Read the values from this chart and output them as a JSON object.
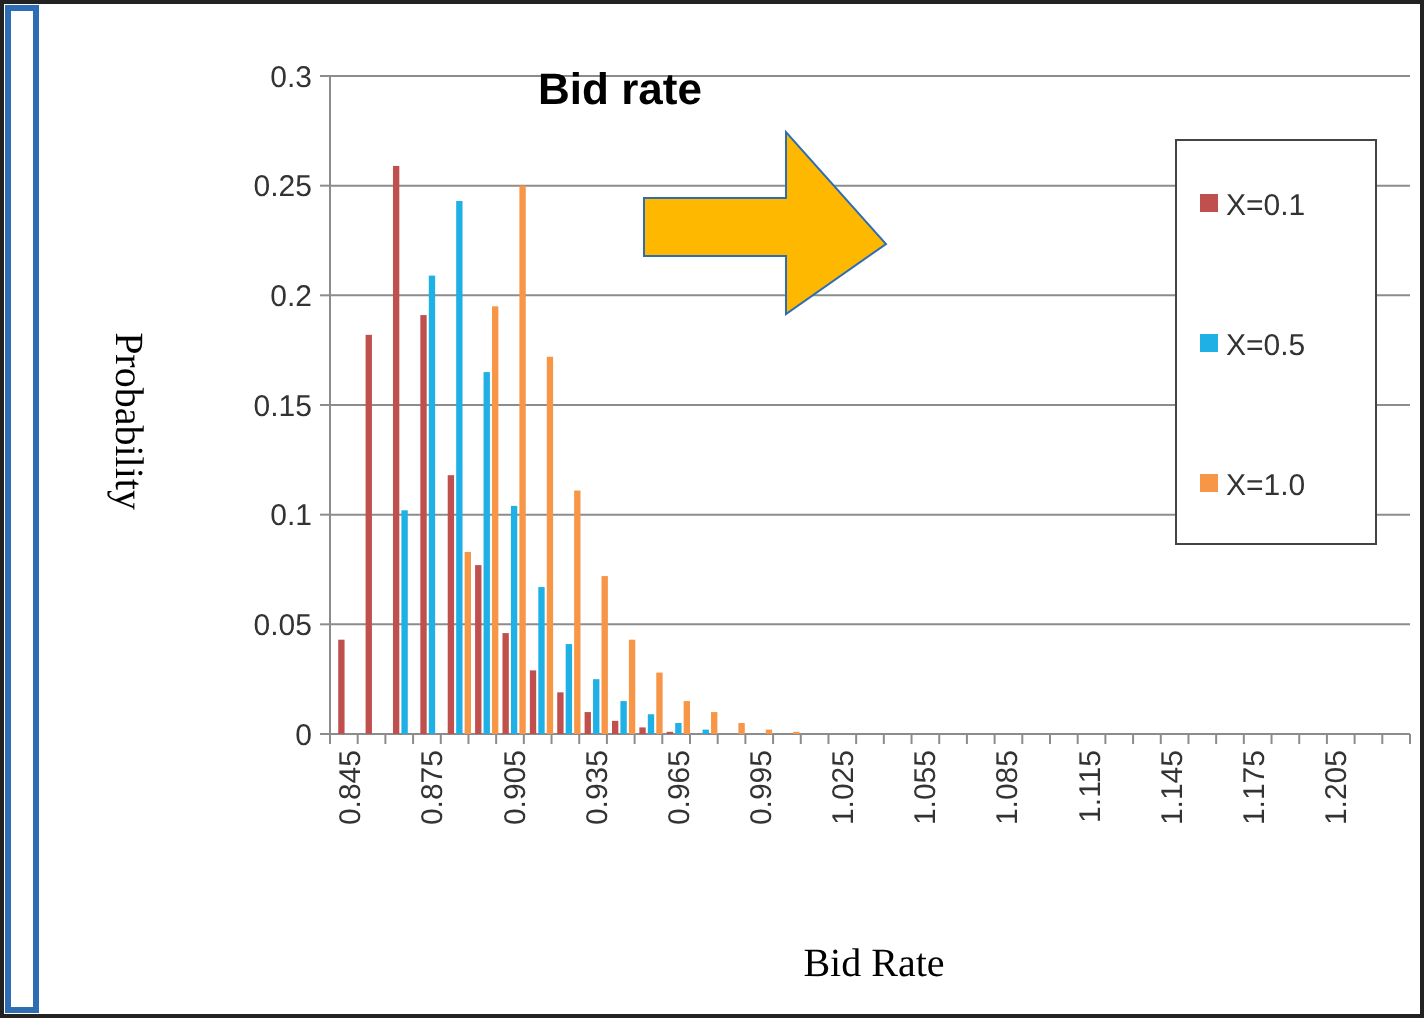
{
  "chart_data": {
    "type": "bar",
    "title": "Bid rate",
    "xlabel": "Bid Rate",
    "ylabel": "Probability",
    "categories": [
      "0.845",
      null,
      null,
      "0.875",
      null,
      null,
      "0.905",
      null,
      null,
      "0.935",
      null,
      null,
      "0.965",
      null,
      null,
      "0.995",
      null,
      null,
      "1.025",
      null,
      null,
      "1.055",
      null,
      null,
      "1.085",
      null,
      null,
      "1.115",
      null,
      null,
      "1.145",
      null,
      null,
      "1.175",
      null,
      null,
      "1.205",
      null,
      null
    ],
    "series": [
      {
        "name": "X=0.1",
        "color": "#c0504d",
        "values": [
          0.043,
          0.182,
          0.259,
          0.191,
          0.118,
          0.077,
          0.046,
          0.029,
          0.019,
          0.01,
          0.006,
          0.003,
          0.001,
          0,
          0,
          0,
          0,
          0,
          0,
          0,
          0,
          0,
          0,
          0,
          0,
          0,
          0,
          0,
          0,
          0,
          0,
          0,
          0,
          0,
          0,
          0,
          0,
          0,
          0
        ]
      },
      {
        "name": "X=0.5",
        "color": "#1fb0e6",
        "values": [
          0,
          0,
          0.102,
          0.209,
          0.243,
          0.165,
          0.104,
          0.067,
          0.041,
          0.025,
          0.015,
          0.009,
          0.005,
          0.002,
          0,
          0,
          0,
          0,
          0,
          0,
          0,
          0,
          0,
          0,
          0,
          0,
          0,
          0,
          0,
          0,
          0,
          0,
          0,
          0,
          0,
          0,
          0,
          0,
          0
        ]
      },
      {
        "name": "X=1.0",
        "color": "#f79646",
        "values": [
          0,
          0,
          0,
          0,
          0.083,
          0.195,
          0.25,
          0.172,
          0.111,
          0.072,
          0.043,
          0.028,
          0.015,
          0.01,
          0.005,
          0.002,
          0.001,
          0,
          0,
          0,
          0,
          0,
          0,
          0,
          0,
          0,
          0,
          0,
          0,
          0,
          0,
          0,
          0,
          0,
          0,
          0,
          0,
          0,
          0
        ]
      }
    ],
    "ylim": [
      0,
      0.3
    ],
    "yticks": [
      0,
      0.05,
      0.1,
      0.15,
      0.2,
      0.25,
      0.3
    ],
    "grid": "y",
    "legend": "top right"
  }
}
